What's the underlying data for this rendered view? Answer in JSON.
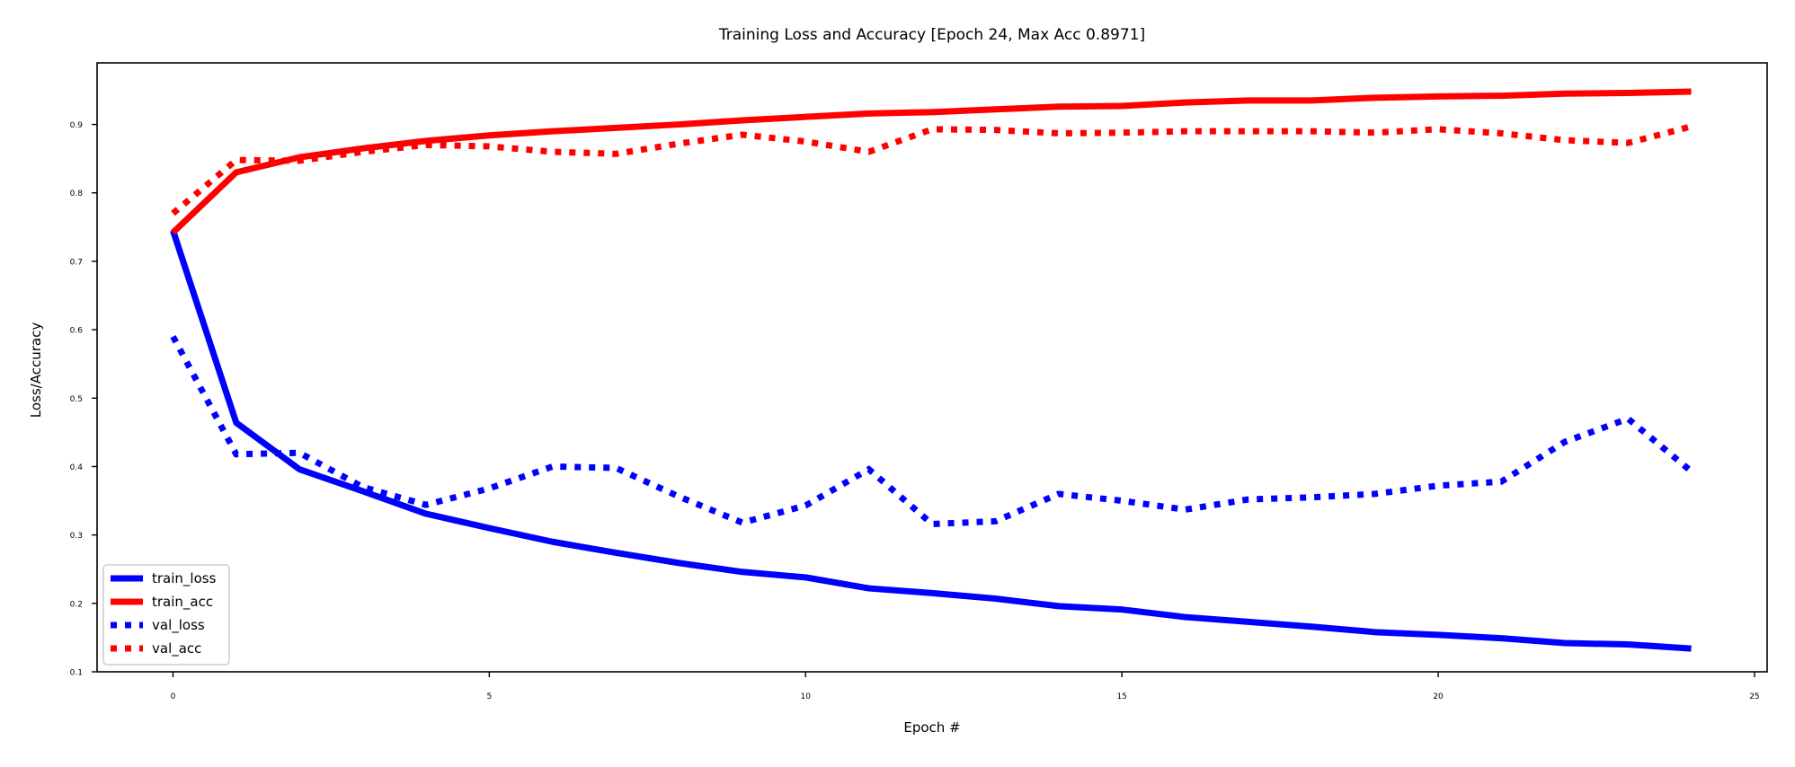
{
  "chart_data": {
    "type": "line",
    "title": "Training Loss and Accuracy [Epoch 24, Max Acc 0.8971]",
    "xlabel": "Epoch #",
    "ylabel": "Loss/Accuracy",
    "xlim": [
      -1.2,
      25.2
    ],
    "ylim": [
      0.1,
      0.99
    ],
    "xticks": [
      0,
      5,
      10,
      15,
      20,
      25
    ],
    "xtick_labels": [
      "0",
      "5",
      "10",
      "15",
      "20",
      "25"
    ],
    "yticks": [
      0.1,
      0.2,
      0.3,
      0.4,
      0.5,
      0.6,
      0.7,
      0.8,
      0.9
    ],
    "ytick_labels": [
      "0.1",
      "0.2",
      "0.3",
      "0.4",
      "0.5",
      "0.6",
      "0.7",
      "0.8",
      "0.9"
    ],
    "grid": false,
    "legend_position": "lower-left",
    "x": [
      0,
      1,
      2,
      3,
      4,
      5,
      6,
      7,
      8,
      9,
      10,
      11,
      12,
      13,
      14,
      15,
      16,
      17,
      18,
      19,
      20,
      21,
      22,
      23,
      24
    ],
    "series": [
      {
        "name": "train_loss",
        "color": "#0000ff",
        "style": "solid",
        "values": [
          0.745,
          0.464,
          0.396,
          0.364,
          0.331,
          0.31,
          0.29,
          0.274,
          0.259,
          0.246,
          0.238,
          0.222,
          0.215,
          0.207,
          0.196,
          0.191,
          0.18,
          0.173,
          0.166,
          0.158,
          0.154,
          0.149,
          0.142,
          0.14,
          0.134
        ]
      },
      {
        "name": "train_acc",
        "color": "#ff0000",
        "style": "solid",
        "values": [
          0.742,
          0.83,
          0.852,
          0.865,
          0.876,
          0.884,
          0.89,
          0.895,
          0.9,
          0.906,
          0.911,
          0.916,
          0.918,
          0.922,
          0.926,
          0.927,
          0.932,
          0.935,
          0.935,
          0.939,
          0.941,
          0.942,
          0.945,
          0.946,
          0.948
        ]
      },
      {
        "name": "val_loss",
        "color": "#0000ff",
        "style": "dotted",
        "values": [
          0.59,
          0.418,
          0.42,
          0.37,
          0.344,
          0.368,
          0.4,
          0.398,
          0.356,
          0.318,
          0.343,
          0.396,
          0.316,
          0.32,
          0.36,
          0.35,
          0.337,
          0.352,
          0.355,
          0.36,
          0.372,
          0.378,
          0.436,
          0.47,
          0.393
        ]
      },
      {
        "name": "val_acc",
        "color": "#ff0000",
        "style": "dotted",
        "values": [
          0.77,
          0.848,
          0.847,
          0.86,
          0.87,
          0.868,
          0.86,
          0.857,
          0.872,
          0.885,
          0.875,
          0.86,
          0.893,
          0.892,
          0.887,
          0.888,
          0.89,
          0.89,
          0.89,
          0.888,
          0.893,
          0.887,
          0.877,
          0.873,
          0.897
        ]
      }
    ]
  }
}
